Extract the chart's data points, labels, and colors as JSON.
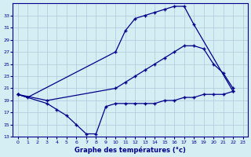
{
  "title": "Graphe des températures (°c)",
  "background_color": "#d4eef4",
  "line_color": "#00008b",
  "grid_color": "#b0c8d8",
  "xlim": [
    -0.5,
    23.5
  ],
  "ylim": [
    13,
    35
  ],
  "yticks": [
    13,
    15,
    17,
    19,
    21,
    23,
    25,
    27,
    29,
    31,
    33
  ],
  "xticks": [
    0,
    1,
    2,
    3,
    4,
    5,
    6,
    7,
    8,
    9,
    10,
    11,
    12,
    13,
    14,
    15,
    16,
    17,
    18,
    19,
    20,
    21,
    22,
    23
  ],
  "series": [
    {
      "x": [
        0,
        1,
        10,
        11,
        12,
        13,
        14,
        15,
        16,
        17,
        18,
        22
      ],
      "y": [
        20.0,
        19.5,
        27.0,
        30.5,
        32.5,
        33.0,
        33.5,
        34.0,
        34.5,
        34.5,
        31.5,
        20.5
      ]
    },
    {
      "x": [
        0,
        3,
        10,
        11,
        12,
        13,
        14,
        15,
        16,
        17,
        18,
        19,
        20,
        21,
        22
      ],
      "y": [
        20.0,
        19.0,
        21.0,
        22.0,
        23.0,
        24.0,
        25.0,
        26.0,
        27.0,
        28.0,
        28.0,
        27.5,
        25.0,
        23.5,
        21.0
      ]
    },
    {
      "x": [
        0,
        3,
        4,
        5,
        6,
        7,
        8,
        9,
        10,
        11,
        12,
        13,
        14,
        15,
        16,
        17,
        18,
        19,
        20,
        21,
        22
      ],
      "y": [
        20.0,
        18.5,
        17.5,
        16.5,
        15.0,
        13.5,
        13.5,
        18.0,
        18.5,
        18.5,
        18.5,
        18.5,
        18.5,
        19.0,
        19.0,
        19.5,
        19.5,
        20.0,
        20.0,
        20.0,
        20.5
      ]
    }
  ]
}
